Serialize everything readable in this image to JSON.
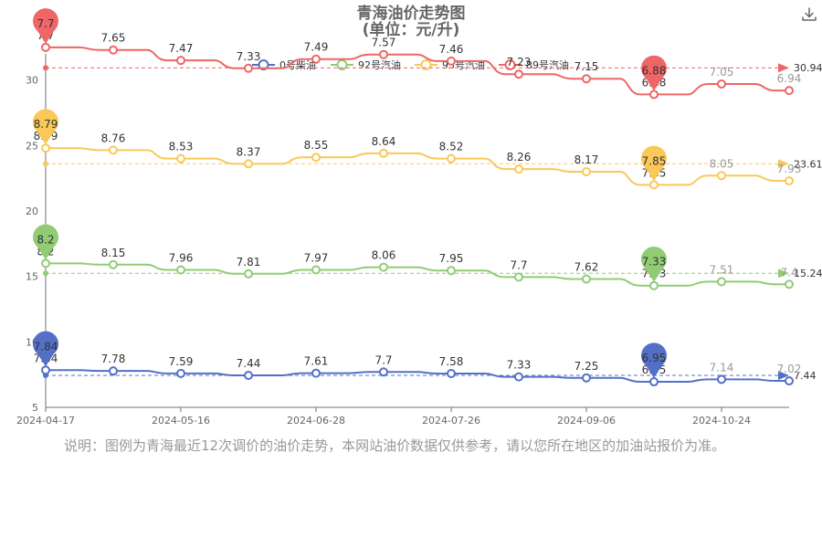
{
  "note": "说明：图例为青海最近12次调价的油价走势，本网站油价数据仅供参考，请以您所在地区的加油站报价为准。",
  "toolbar": {
    "download_icon": "download-icon"
  },
  "chart_data": {
    "type": "line",
    "title": "青海油价走势图",
    "subtitle": "(单位：元/升)",
    "xlabel": "",
    "ylabel": "",
    "ylim": [
      5,
      32
    ],
    "y_ticks": [
      "5",
      "10",
      "15",
      "20",
      "25",
      "30"
    ],
    "x_tick_labels": [
      "2024-04-17",
      "2024-05-16",
      "2024-06-28",
      "2024-07-26",
      "2024-09-06",
      "2024-10-24"
    ],
    "x_tick_indices": [
      0,
      2,
      4,
      6,
      8,
      10
    ],
    "legend_position": "top-center",
    "grid": false,
    "series": [
      {
        "name": "0号柴油",
        "color": "#5470c6",
        "plot_values": [
          7.84,
          7.78,
          7.59,
          7.44,
          7.61,
          7.7,
          7.58,
          7.33,
          7.25,
          6.95,
          7.14,
          7.02
        ],
        "labels": [
          "7.84",
          "7.78",
          "7.59",
          "7.44",
          "7.61",
          "7.7",
          "7.58",
          "7.33",
          "7.25",
          "6.95",
          "7.14",
          "7.02"
        ],
        "max_pin": "7.84",
        "min_pin": "6.95",
        "average": "7.44",
        "average_value": 7.44
      },
      {
        "name": "92号汽油",
        "color": "#91cc75",
        "plot_values": [
          16.0,
          15.9,
          15.5,
          15.2,
          15.5,
          15.7,
          15.45,
          14.95,
          14.8,
          14.3,
          14.6,
          14.4
        ],
        "labels": [
          "8.2",
          "8.15",
          "7.96",
          "7.81",
          "7.97",
          "8.06",
          "7.95",
          "7.7",
          "7.62",
          "7.33",
          "7.51",
          "7.4"
        ],
        "max_pin": "8.2",
        "min_pin": "7.33",
        "average": "15.24",
        "average_value": 15.24
      },
      {
        "name": "95号汽油",
        "color": "#fac858",
        "plot_values": [
          24.8,
          24.65,
          24.0,
          23.6,
          24.1,
          24.4,
          24.0,
          23.2,
          23.0,
          22.0,
          22.7,
          22.3
        ],
        "labels": [
          "8.79",
          "8.76",
          "8.53",
          "8.37",
          "8.55",
          "8.64",
          "8.52",
          "8.26",
          "8.17",
          "7.85",
          "8.05",
          "7.93"
        ],
        "max_pin": "8.79",
        "min_pin": "7.85",
        "average": "23.61",
        "average_value": 23.61
      },
      {
        "name": "89号汽油",
        "color": "#ee6666",
        "plot_values": [
          32.5,
          32.3,
          31.5,
          30.9,
          31.6,
          31.95,
          31.45,
          30.45,
          30.1,
          28.9,
          29.7,
          29.2
        ],
        "labels": [
          "7.7",
          "7.65",
          "7.47",
          "7.33",
          "7.49",
          "7.57",
          "7.46",
          "7.23",
          "7.15",
          "6.88",
          "7.05",
          "6.94"
        ],
        "max_pin": "7.7",
        "min_pin": "6.88",
        "average": "30.94",
        "average_value": 30.94
      }
    ]
  }
}
